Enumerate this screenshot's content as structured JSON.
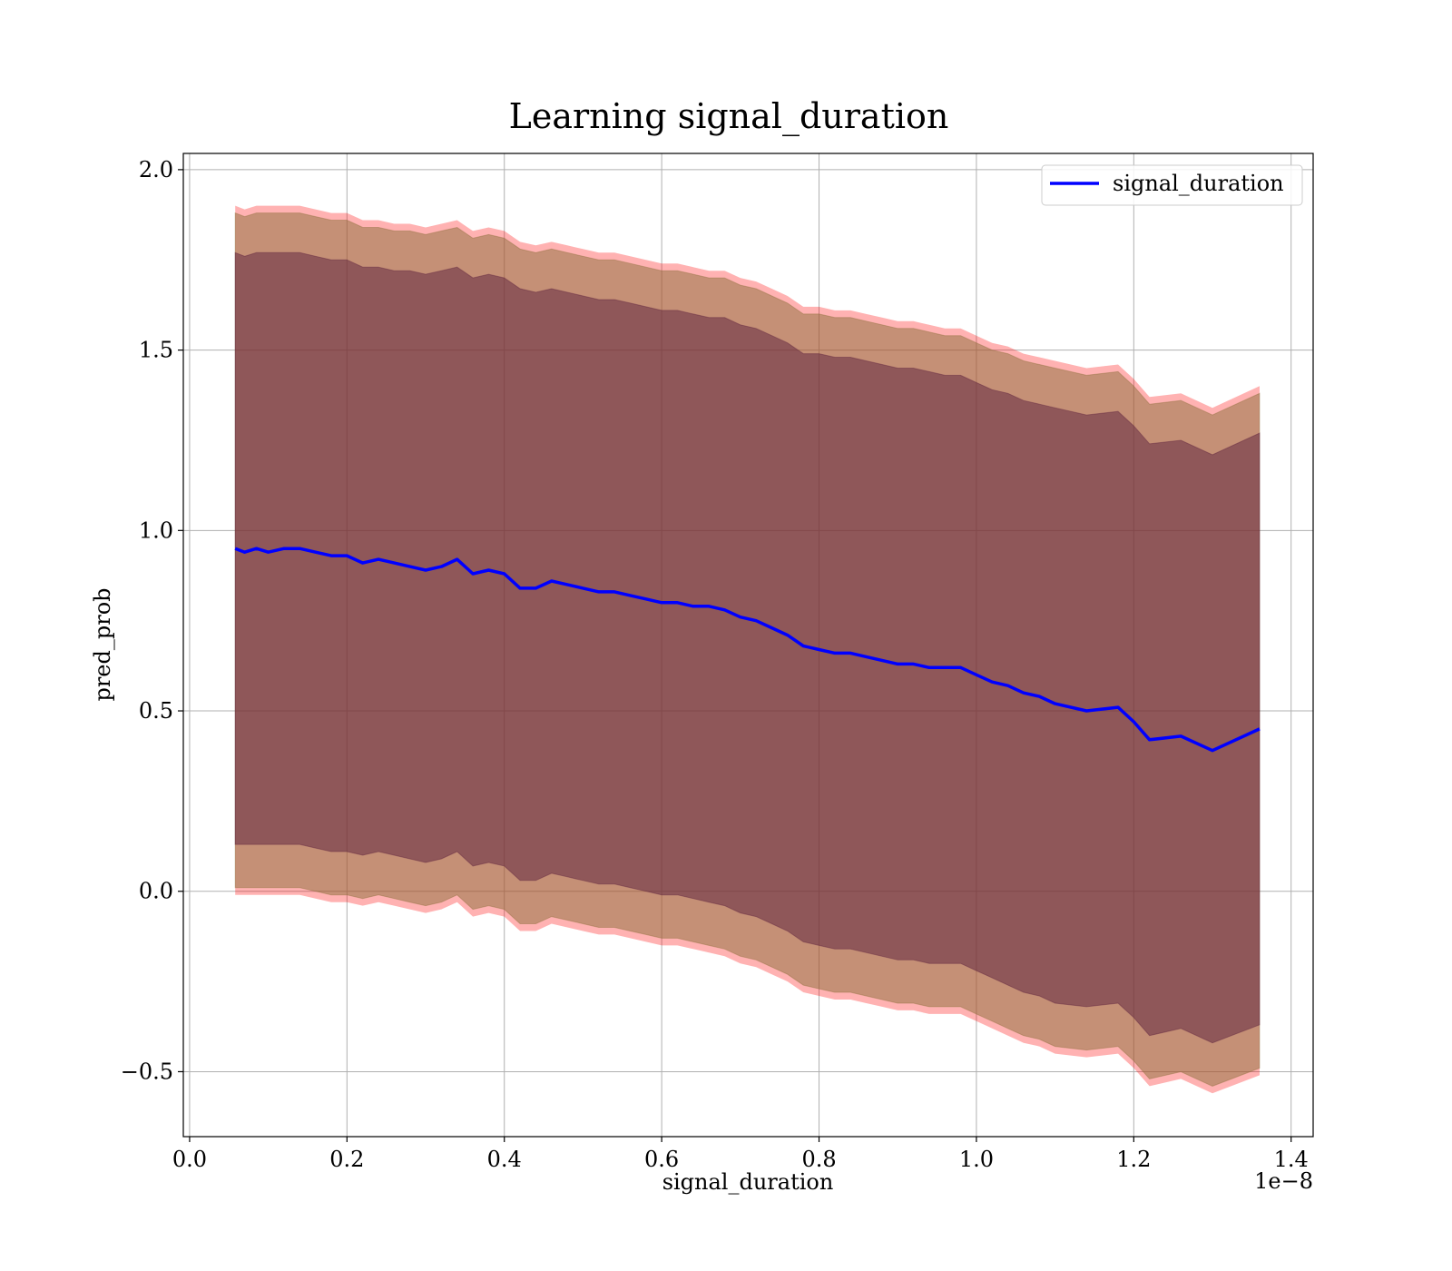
{
  "chart_data": {
    "type": "line",
    "title": "Learning signal_duration",
    "xlabel": "signal_duration",
    "ylabel": "pred_prob",
    "x_offset_label": "1e−8",
    "xlim": [
      -0.008,
      1.428
    ],
    "ylim": [
      -0.68,
      2.045
    ],
    "xticks": [
      0.0,
      0.2,
      0.4,
      0.6,
      0.8,
      1.0,
      1.2,
      1.4
    ],
    "xtick_labels": [
      "0.0",
      "0.2",
      "0.4",
      "0.6",
      "0.8",
      "1.0",
      "1.2",
      "1.4"
    ],
    "yticks": [
      -0.5,
      0.0,
      0.5,
      1.0,
      1.5,
      2.0
    ],
    "ytick_labels": [
      "−0.5",
      "0.0",
      "0.5",
      "1.0",
      "1.5",
      "2.0"
    ],
    "grid": true,
    "legend": {
      "position": "top-right",
      "entries": [
        {
          "name": "signal_duration",
          "color": "#0000ff"
        }
      ]
    },
    "colors": {
      "line": "#0000ff",
      "outer_band": "#ff0000",
      "middle_band": "#8b6e3a",
      "inner_band": "#5a1e3c"
    },
    "series": [
      {
        "name": "signal_duration",
        "x": [
          0.058,
          0.07,
          0.085,
          0.1,
          0.12,
          0.14,
          0.16,
          0.18,
          0.2,
          0.22,
          0.24,
          0.26,
          0.28,
          0.3,
          0.32,
          0.34,
          0.36,
          0.38,
          0.4,
          0.42,
          0.44,
          0.46,
          0.48,
          0.5,
          0.52,
          0.54,
          0.56,
          0.58,
          0.6,
          0.62,
          0.64,
          0.66,
          0.68,
          0.7,
          0.72,
          0.74,
          0.76,
          0.78,
          0.8,
          0.82,
          0.84,
          0.86,
          0.88,
          0.9,
          0.92,
          0.94,
          0.96,
          0.98,
          1.0,
          1.02,
          1.04,
          1.06,
          1.08,
          1.1,
          1.14,
          1.18,
          1.2,
          1.22,
          1.26,
          1.3,
          1.36
        ],
        "y": [
          0.95,
          0.94,
          0.95,
          0.94,
          0.95,
          0.95,
          0.94,
          0.93,
          0.93,
          0.91,
          0.92,
          0.91,
          0.9,
          0.89,
          0.9,
          0.92,
          0.88,
          0.89,
          0.88,
          0.84,
          0.84,
          0.86,
          0.85,
          0.84,
          0.83,
          0.83,
          0.82,
          0.81,
          0.8,
          0.8,
          0.79,
          0.79,
          0.78,
          0.76,
          0.75,
          0.73,
          0.71,
          0.68,
          0.67,
          0.66,
          0.66,
          0.65,
          0.64,
          0.63,
          0.63,
          0.62,
          0.62,
          0.62,
          0.6,
          0.58,
          0.57,
          0.55,
          0.54,
          0.52,
          0.5,
          0.51,
          0.47,
          0.42,
          0.43,
          0.39,
          0.45
        ],
        "outer_band": {
          "upper": [
            1.9,
            1.89,
            1.9,
            1.9,
            1.9,
            1.9,
            1.89,
            1.88,
            1.88,
            1.86,
            1.86,
            1.85,
            1.85,
            1.84,
            1.85,
            1.86,
            1.83,
            1.84,
            1.83,
            1.8,
            1.79,
            1.8,
            1.79,
            1.78,
            1.77,
            1.77,
            1.76,
            1.75,
            1.74,
            1.74,
            1.73,
            1.72,
            1.72,
            1.7,
            1.69,
            1.67,
            1.65,
            1.62,
            1.62,
            1.61,
            1.61,
            1.6,
            1.59,
            1.58,
            1.58,
            1.57,
            1.56,
            1.56,
            1.54,
            1.52,
            1.51,
            1.49,
            1.48,
            1.47,
            1.45,
            1.46,
            1.42,
            1.37,
            1.38,
            1.34,
            1.4
          ],
          "lower": [
            -0.01,
            -0.01,
            -0.01,
            -0.01,
            -0.01,
            -0.01,
            -0.02,
            -0.03,
            -0.03,
            -0.04,
            -0.03,
            -0.04,
            -0.05,
            -0.06,
            -0.05,
            -0.03,
            -0.07,
            -0.06,
            -0.07,
            -0.11,
            -0.11,
            -0.09,
            -0.1,
            -0.11,
            -0.12,
            -0.12,
            -0.13,
            -0.14,
            -0.15,
            -0.15,
            -0.16,
            -0.17,
            -0.18,
            -0.2,
            -0.21,
            -0.23,
            -0.25,
            -0.28,
            -0.29,
            -0.3,
            -0.3,
            -0.31,
            -0.32,
            -0.33,
            -0.33,
            -0.34,
            -0.34,
            -0.34,
            -0.36,
            -0.38,
            -0.4,
            -0.42,
            -0.43,
            -0.45,
            -0.46,
            -0.45,
            -0.49,
            -0.54,
            -0.52,
            -0.56,
            -0.51
          ]
        },
        "middle_band": {
          "upper": [
            1.88,
            1.87,
            1.88,
            1.88,
            1.88,
            1.88,
            1.87,
            1.86,
            1.86,
            1.84,
            1.84,
            1.83,
            1.83,
            1.82,
            1.83,
            1.84,
            1.81,
            1.82,
            1.81,
            1.78,
            1.77,
            1.78,
            1.77,
            1.76,
            1.75,
            1.75,
            1.74,
            1.73,
            1.72,
            1.72,
            1.71,
            1.7,
            1.7,
            1.68,
            1.67,
            1.65,
            1.63,
            1.6,
            1.6,
            1.59,
            1.59,
            1.58,
            1.57,
            1.56,
            1.56,
            1.55,
            1.54,
            1.54,
            1.52,
            1.5,
            1.49,
            1.47,
            1.46,
            1.45,
            1.43,
            1.44,
            1.4,
            1.35,
            1.36,
            1.32,
            1.38
          ],
          "lower": [
            0.01,
            0.01,
            0.01,
            0.01,
            0.01,
            0.01,
            0.0,
            -0.01,
            -0.01,
            -0.02,
            -0.01,
            -0.02,
            -0.03,
            -0.04,
            -0.03,
            -0.01,
            -0.05,
            -0.04,
            -0.05,
            -0.09,
            -0.09,
            -0.07,
            -0.08,
            -0.09,
            -0.1,
            -0.1,
            -0.11,
            -0.12,
            -0.13,
            -0.13,
            -0.14,
            -0.15,
            -0.16,
            -0.18,
            -0.19,
            -0.21,
            -0.23,
            -0.26,
            -0.27,
            -0.28,
            -0.28,
            -0.29,
            -0.3,
            -0.31,
            -0.31,
            -0.32,
            -0.32,
            -0.32,
            -0.34,
            -0.36,
            -0.38,
            -0.4,
            -0.41,
            -0.43,
            -0.44,
            -0.43,
            -0.47,
            -0.52,
            -0.5,
            -0.54,
            -0.49
          ]
        },
        "inner_band": {
          "upper": [
            1.77,
            1.76,
            1.77,
            1.77,
            1.77,
            1.77,
            1.76,
            1.75,
            1.75,
            1.73,
            1.73,
            1.72,
            1.72,
            1.71,
            1.72,
            1.73,
            1.7,
            1.71,
            1.7,
            1.67,
            1.66,
            1.67,
            1.66,
            1.65,
            1.64,
            1.64,
            1.63,
            1.62,
            1.61,
            1.61,
            1.6,
            1.59,
            1.59,
            1.57,
            1.56,
            1.54,
            1.52,
            1.49,
            1.49,
            1.48,
            1.48,
            1.47,
            1.46,
            1.45,
            1.45,
            1.44,
            1.43,
            1.43,
            1.41,
            1.39,
            1.38,
            1.36,
            1.35,
            1.34,
            1.32,
            1.33,
            1.29,
            1.24,
            1.25,
            1.21,
            1.27
          ],
          "lower": [
            0.13,
            0.13,
            0.13,
            0.13,
            0.13,
            0.13,
            0.12,
            0.11,
            0.11,
            0.1,
            0.11,
            0.1,
            0.09,
            0.08,
            0.09,
            0.11,
            0.07,
            0.08,
            0.07,
            0.03,
            0.03,
            0.05,
            0.04,
            0.03,
            0.02,
            0.02,
            0.01,
            0.0,
            -0.01,
            -0.01,
            -0.02,
            -0.03,
            -0.04,
            -0.06,
            -0.07,
            -0.09,
            -0.11,
            -0.14,
            -0.15,
            -0.16,
            -0.16,
            -0.17,
            -0.18,
            -0.19,
            -0.19,
            -0.2,
            -0.2,
            -0.2,
            -0.22,
            -0.24,
            -0.26,
            -0.28,
            -0.29,
            -0.31,
            -0.32,
            -0.31,
            -0.35,
            -0.4,
            -0.38,
            -0.42,
            -0.37
          ]
        }
      }
    ]
  }
}
